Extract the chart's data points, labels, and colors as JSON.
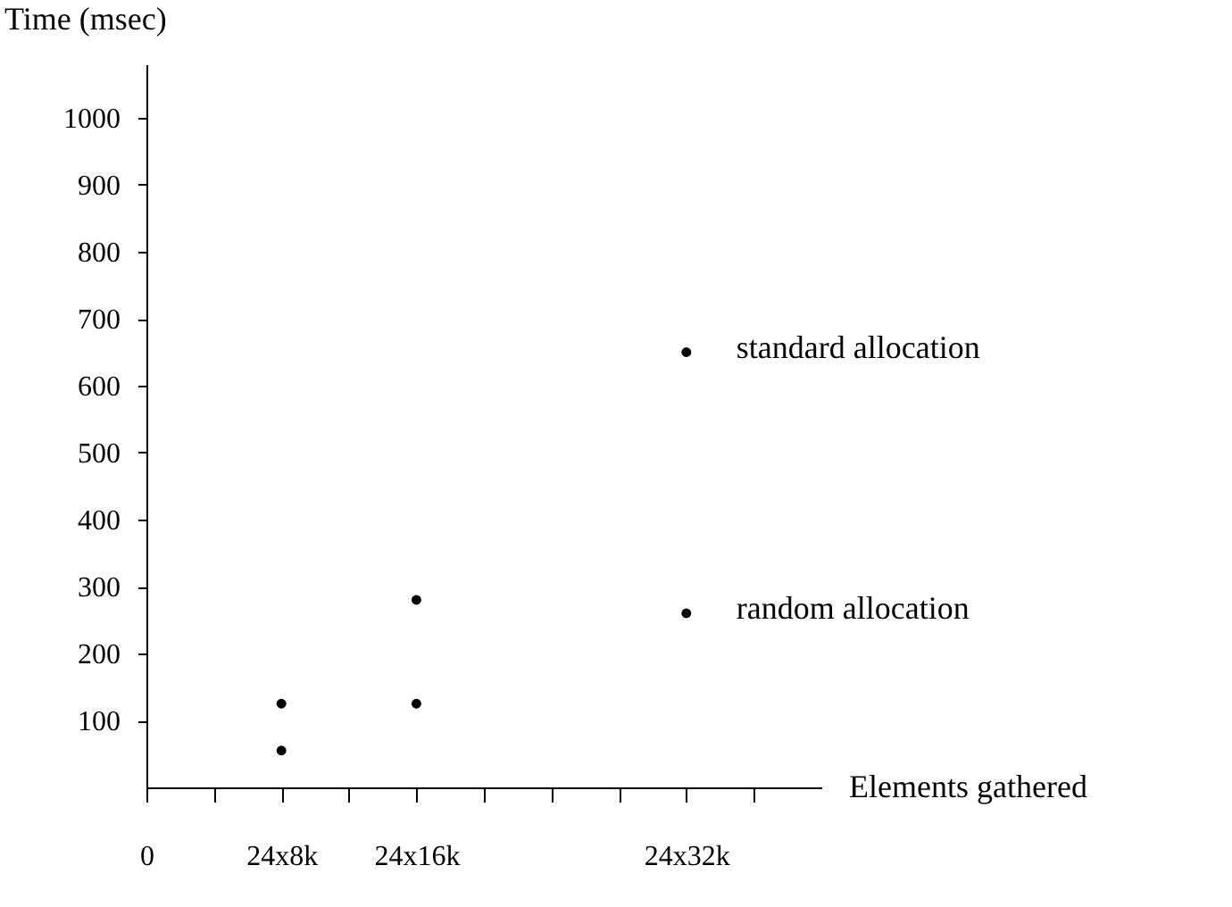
{
  "chart_data": {
    "type": "scatter",
    "ylabel": "Time (msec)",
    "xlabel": "Elements gathered",
    "categories": [
      "0",
      null,
      "24x8k",
      null,
      "24x16k",
      null,
      null,
      null,
      "24x32k",
      null
    ],
    "series": [
      {
        "name": "standard allocation",
        "color": "#000000",
        "marker": "circle",
        "values": [
          null,
          null,
          125,
          null,
          280,
          null,
          null,
          null,
          650,
          null
        ]
      },
      {
        "name": "random allocation",
        "color": "#000000",
        "marker": "circle",
        "values": [
          null,
          null,
          55,
          null,
          125,
          null,
          null,
          null,
          260,
          null
        ]
      }
    ],
    "ylim": [
      0,
      1080
    ],
    "yticks": [
      100,
      200,
      300,
      400,
      500,
      600,
      700,
      800,
      900,
      1000
    ],
    "grid": false,
    "legend": "right"
  }
}
